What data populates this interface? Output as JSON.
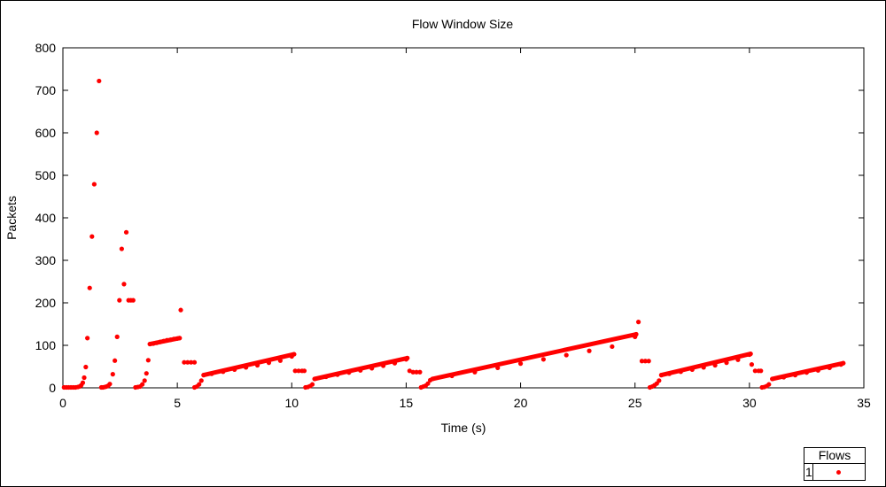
{
  "chart_data": {
    "type": "scatter",
    "title": "Flow Window Size",
    "xlabel": "Time (s)",
    "ylabel": "Packets",
    "xlim": [
      0,
      35
    ],
    "ylim": [
      0,
      800
    ],
    "xticks": [
      0,
      5,
      10,
      15,
      20,
      25,
      30,
      35
    ],
    "yticks": [
      0,
      100,
      200,
      300,
      400,
      500,
      600,
      700,
      800
    ],
    "grid": false,
    "legend": {
      "title": "Flows",
      "placement": "bottom-right"
    },
    "series": [
      {
        "name": "1",
        "color": "#ff0000",
        "marker": "dot",
        "points": [
          [
            0.05,
            1
          ],
          [
            0.15,
            1
          ],
          [
            0.25,
            1
          ],
          [
            0.35,
            1
          ],
          [
            0.45,
            1
          ],
          [
            0.55,
            1
          ],
          [
            0.65,
            2
          ],
          [
            0.72,
            3
          ],
          [
            0.8,
            6
          ],
          [
            0.87,
            12
          ],
          [
            0.93,
            24
          ],
          [
            1.0,
            49
          ],
          [
            1.07,
            117
          ],
          [
            1.17,
            235
          ],
          [
            1.27,
            356
          ],
          [
            1.37,
            479
          ],
          [
            1.48,
            600
          ],
          [
            1.58,
            722
          ],
          [
            1.68,
            1
          ],
          [
            1.75,
            1
          ],
          [
            1.83,
            2
          ],
          [
            1.9,
            3
          ],
          [
            1.98,
            5
          ],
          [
            2.05,
            9
          ],
          [
            2.18,
            32
          ],
          [
            2.27,
            64
          ],
          [
            2.37,
            120
          ],
          [
            2.47,
            206
          ],
          [
            2.57,
            327
          ],
          [
            2.67,
            244
          ],
          [
            2.77,
            366
          ],
          [
            2.87,
            206
          ],
          [
            2.97,
            206
          ],
          [
            3.07,
            206
          ],
          [
            3.17,
            1
          ],
          [
            3.27,
            2
          ],
          [
            3.37,
            3
          ],
          [
            3.47,
            8
          ],
          [
            3.57,
            17
          ],
          [
            3.65,
            34
          ],
          [
            3.73,
            65
          ],
          [
            3.8,
            103
          ],
          [
            3.95,
            104
          ],
          [
            4.1,
            106
          ],
          [
            4.25,
            108
          ],
          [
            4.4,
            110
          ],
          [
            4.55,
            112
          ],
          [
            4.7,
            113
          ],
          [
            4.85,
            115
          ],
          [
            5.0,
            116
          ],
          [
            5.1,
            117
          ],
          [
            5.15,
            183
          ],
          [
            5.3,
            60
          ],
          [
            5.45,
            60
          ],
          [
            5.6,
            60
          ],
          [
            5.75,
            60
          ],
          [
            5.75,
            1
          ],
          [
            5.85,
            3
          ],
          [
            5.95,
            8
          ],
          [
            6.05,
            17
          ],
          [
            6.15,
            30
          ],
          [
            6.5,
            33
          ],
          [
            7.0,
            38
          ],
          [
            7.5,
            43
          ],
          [
            8.0,
            48
          ],
          [
            8.5,
            53
          ],
          [
            9.0,
            59
          ],
          [
            9.5,
            64
          ],
          [
            10.0,
            74
          ],
          [
            10.1,
            79
          ],
          [
            10.15,
            40
          ],
          [
            10.3,
            40
          ],
          [
            10.45,
            40
          ],
          [
            10.55,
            40
          ],
          [
            10.6,
            1
          ],
          [
            10.7,
            2
          ],
          [
            10.8,
            4
          ],
          [
            10.9,
            8
          ],
          [
            11.0,
            21
          ],
          [
            11.5,
            26
          ],
          [
            12.0,
            31
          ],
          [
            12.5,
            36
          ],
          [
            13.0,
            41
          ],
          [
            13.5,
            46
          ],
          [
            14.0,
            52
          ],
          [
            14.5,
            58
          ],
          [
            15.0,
            67
          ],
          [
            15.05,
            70
          ],
          [
            15.15,
            40
          ],
          [
            15.3,
            37
          ],
          [
            15.45,
            37
          ],
          [
            15.6,
            37
          ],
          [
            15.65,
            1
          ],
          [
            15.75,
            3
          ],
          [
            15.85,
            5
          ],
          [
            15.95,
            10
          ],
          [
            16.05,
            18
          ],
          [
            16.15,
            21
          ],
          [
            17.0,
            28
          ],
          [
            18.0,
            37
          ],
          [
            19.0,
            47
          ],
          [
            20.0,
            57
          ],
          [
            21.0,
            67
          ],
          [
            22.0,
            77
          ],
          [
            23.0,
            87
          ],
          [
            24.0,
            97
          ],
          [
            25.0,
            120
          ],
          [
            25.05,
            126
          ],
          [
            25.15,
            155
          ],
          [
            25.3,
            63
          ],
          [
            25.45,
            63
          ],
          [
            25.6,
            63
          ],
          [
            25.65,
            1
          ],
          [
            25.75,
            3
          ],
          [
            25.85,
            6
          ],
          [
            25.95,
            10
          ],
          [
            26.05,
            17
          ],
          [
            26.15,
            30
          ],
          [
            26.5,
            33
          ],
          [
            27.0,
            38
          ],
          [
            27.5,
            43
          ],
          [
            28.0,
            48
          ],
          [
            28.5,
            53
          ],
          [
            29.0,
            59
          ],
          [
            29.5,
            66
          ],
          [
            30.0,
            78
          ],
          [
            30.05,
            80
          ],
          [
            30.1,
            55
          ],
          [
            30.25,
            40
          ],
          [
            30.4,
            40
          ],
          [
            30.5,
            40
          ],
          [
            30.55,
            1
          ],
          [
            30.65,
            2
          ],
          [
            30.75,
            4
          ],
          [
            30.85,
            8
          ],
          [
            31.0,
            21
          ],
          [
            31.5,
            25
          ],
          [
            32.0,
            30
          ],
          [
            32.5,
            36
          ],
          [
            33.0,
            41
          ],
          [
            33.5,
            47
          ],
          [
            34.0,
            55
          ],
          [
            34.1,
            58
          ]
        ],
        "segments": [
          [
            3.8,
            103,
            5.1,
            117
          ],
          [
            6.15,
            30,
            10.1,
            79
          ],
          [
            11.0,
            21,
            15.05,
            70
          ],
          [
            16.15,
            21,
            25.05,
            126
          ],
          [
            26.15,
            30,
            30.05,
            80
          ],
          [
            31.0,
            21,
            34.1,
            58
          ]
        ]
      }
    ]
  }
}
